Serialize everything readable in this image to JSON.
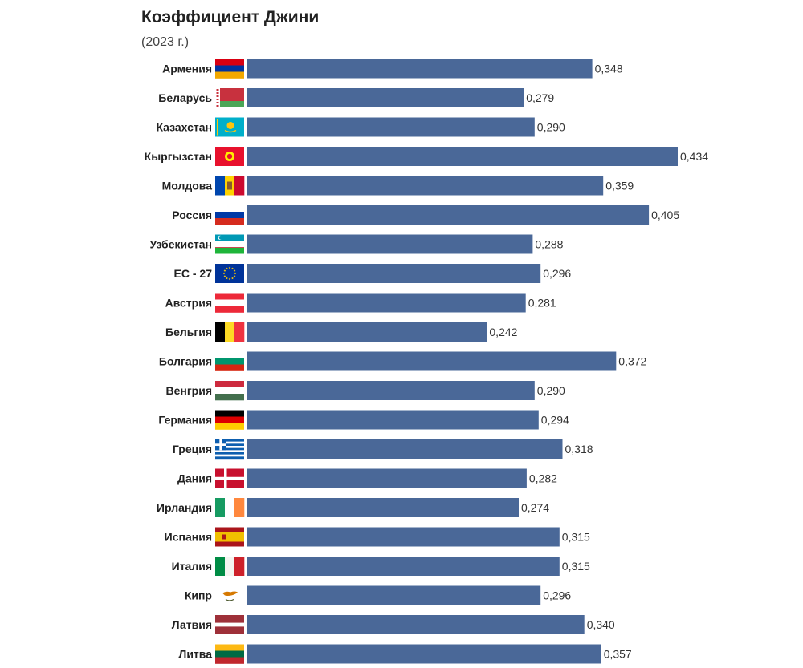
{
  "chart_data": {
    "type": "bar",
    "orientation": "horizontal",
    "title": "Коэффициент Джини",
    "subtitle": "(2023 г.)",
    "categories": [
      "Армения",
      "Беларусь",
      "Казахстан",
      "Кыргызстан",
      "Молдова",
      "Россия",
      "Узбекистан",
      "ЕС - 27",
      "Австрия",
      "Бельгия",
      "Болгария",
      "Венгрия",
      "Германия",
      "Греция",
      "Дания",
      "Ирландия",
      "Испания",
      "Италия",
      "Кипр",
      "Латвия",
      "Литва"
    ],
    "values": [
      0.348,
      0.279,
      0.29,
      0.434,
      0.359,
      0.405,
      0.288,
      0.296,
      0.281,
      0.242,
      0.372,
      0.29,
      0.294,
      0.318,
      0.282,
      0.274,
      0.315,
      0.315,
      0.296,
      0.34,
      0.357
    ],
    "value_labels": [
      "0,348",
      "0,279",
      "0,290",
      "0,434",
      "0,359",
      "0,405",
      "0,288",
      "0,296",
      "0,281",
      "0,242",
      "0,372",
      "0,290",
      "0,294",
      "0,318",
      "0,282",
      "0,274",
      "0,315",
      "0,315",
      "0,296",
      "0,340",
      "0,357"
    ],
    "flags": [
      "armenia-flag-icon",
      "belarus-flag-icon",
      "kazakhstan-flag-icon",
      "kyrgyzstan-flag-icon",
      "moldova-flag-icon",
      "russia-flag-icon",
      "uzbekistan-flag-icon",
      "eu-flag-icon",
      "austria-flag-icon",
      "belgium-flag-icon",
      "bulgaria-flag-icon",
      "hungary-flag-icon",
      "germany-flag-icon",
      "greece-flag-icon",
      "denmark-flag-icon",
      "ireland-flag-icon",
      "spain-flag-icon",
      "italy-flag-icon",
      "cyprus-flag-icon",
      "latvia-flag-icon",
      "lithuania-flag-icon"
    ],
    "bar_color": "#4a6898",
    "xlim": [
      0,
      0.434
    ],
    "grid": false,
    "legend": "none"
  }
}
